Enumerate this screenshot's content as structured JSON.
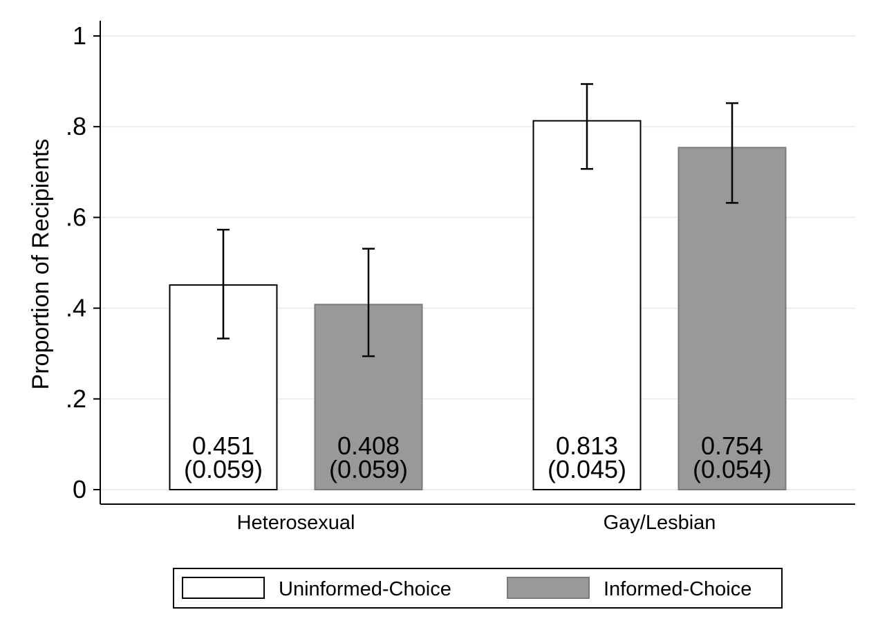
{
  "chart_data": {
    "type": "bar",
    "categories": [
      "Heterosexual",
      "Gay/Lesbian"
    ],
    "series": [
      {
        "name": "Uninformed-Choice",
        "color": "#ffffff",
        "values": [
          0.451,
          0.813
        ],
        "se": [
          0.059,
          0.045
        ],
        "ci_low": [
          0.333,
          0.707
        ],
        "ci_high": [
          0.573,
          0.894
        ],
        "value_labels": [
          "0.451",
          "0.813"
        ],
        "se_labels": [
          "(0.059)",
          "(0.045)"
        ]
      },
      {
        "name": "Informed-Choice",
        "color": "#999999",
        "values": [
          0.408,
          0.754
        ],
        "se": [
          0.059,
          0.054
        ],
        "ci_low": [
          0.294,
          0.632
        ],
        "ci_high": [
          0.531,
          0.852
        ],
        "value_labels": [
          "0.408",
          "0.754"
        ],
        "se_labels": [
          "(0.059)",
          "(0.054)"
        ]
      }
    ],
    "ylabel": "Proportion of Recipients",
    "ylim": [
      0,
      1
    ],
    "yticks": [
      0,
      0.2,
      0.4,
      0.6,
      0.8,
      1
    ],
    "ytick_labels": [
      "0",
      ".2",
      ".4",
      ".6",
      ".8",
      "1"
    ],
    "grid": true,
    "legend_position": "bottom"
  }
}
